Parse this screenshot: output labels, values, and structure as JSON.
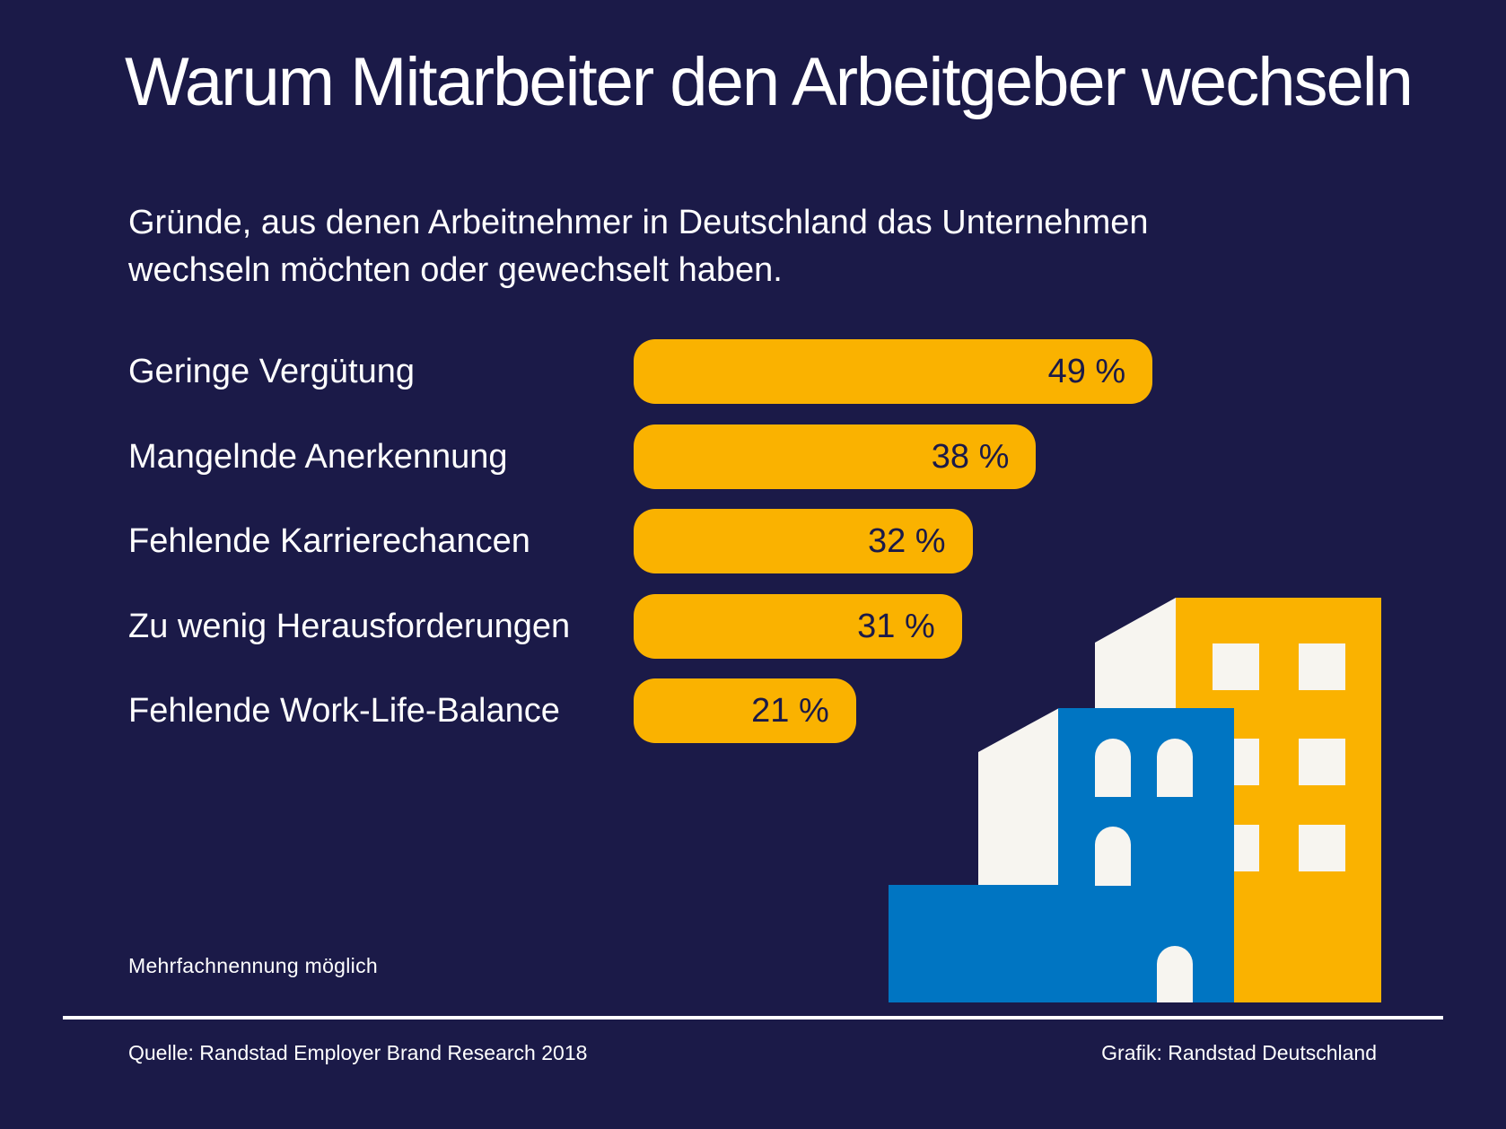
{
  "title": "Warum Mitarbeiter den Arbeitgeber wechseln",
  "subtitle": "Gründe, aus denen Arbeitnehmer in Deutschland das Unternehmen wechseln möchten oder gewechselt haben.",
  "note": "Mehrfachnennung möglich",
  "source": "Quelle: Randstad Employer Brand Research 2018",
  "credit": "Grafik: Randstad Deutschland",
  "colors": {
    "background": "#1b1a48",
    "bar": "#fab200",
    "building_blue": "#0075c2",
    "building_white": "#f7f5f0",
    "building_yellow": "#fab200"
  },
  "chart_data": {
    "type": "bar",
    "orientation": "horizontal",
    "title": "Warum Mitarbeiter den Arbeitgeber wechseln",
    "unit": "%",
    "categories": [
      "Geringe Vergütung",
      "Mangelnde Anerkennung",
      "Fehlende Karrierechancen",
      "Zu wenig Herausforderungen",
      "Fehlende Work-Life-Balance"
    ],
    "values": [
      49,
      38,
      32,
      31,
      21
    ],
    "value_labels": [
      "49 %",
      "38 %",
      "32 %",
      "31 %",
      "21 %"
    ],
    "xlim": [
      0,
      100
    ]
  }
}
